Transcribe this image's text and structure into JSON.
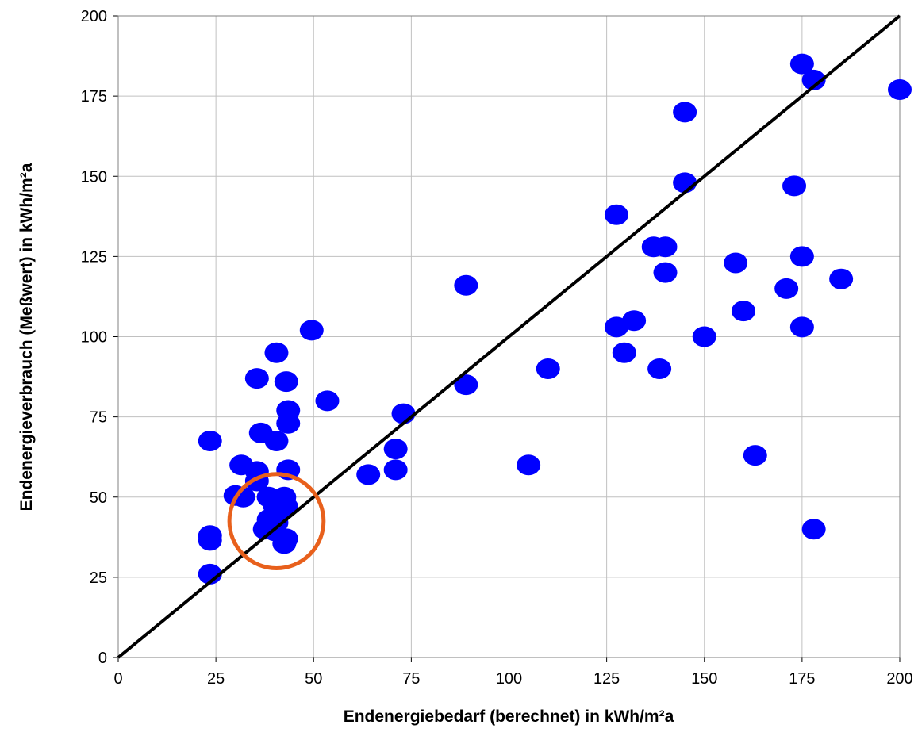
{
  "chart_data": {
    "type": "scatter",
    "title": "",
    "xlabel": "Endenergiebedarf (berechnet) in kWh/m²a",
    "ylabel": "Endenergieverbrauch (Meßwert) in kWh/m²a",
    "xlim": [
      0,
      200
    ],
    "ylim": [
      0,
      200
    ],
    "xticks": [
      "0",
      "25",
      "50",
      "75",
      "100",
      "125",
      "150",
      "175",
      "200"
    ],
    "yticks": [
      "0",
      "25",
      "50",
      "75",
      "100",
      "125",
      "150",
      "175",
      "200"
    ],
    "grid": true,
    "legend": "none",
    "colors": {
      "points": "#0000ff",
      "reference_line": "#000000",
      "highlight": "#e8601c",
      "grid": "#c0c0c0"
    },
    "reference_line": {
      "from": [
        0,
        0
      ],
      "to": [
        200,
        200
      ]
    },
    "highlight_circle": {
      "x": 40.5,
      "y": 42.5,
      "radius_x": 8.5,
      "radius_y": 19
    },
    "points": [
      [
        23.5,
        67.5
      ],
      [
        23.5,
        38
      ],
      [
        23.5,
        36.5
      ],
      [
        23.5,
        26
      ],
      [
        31.5,
        60
      ],
      [
        30,
        50.5
      ],
      [
        32,
        50
      ],
      [
        35.5,
        58
      ],
      [
        35.5,
        55
      ],
      [
        35.5,
        87
      ],
      [
        36.5,
        70
      ],
      [
        40.5,
        95
      ],
      [
        40.5,
        67.5
      ],
      [
        43,
        86
      ],
      [
        43.5,
        77
      ],
      [
        43.5,
        73
      ],
      [
        43.5,
        58.5
      ],
      [
        49.5,
        102
      ],
      [
        53.5,
        80
      ],
      [
        38.5,
        50
      ],
      [
        40,
        47.5
      ],
      [
        41,
        45
      ],
      [
        42.5,
        50
      ],
      [
        43,
        47
      ],
      [
        38.5,
        43
      ],
      [
        40.5,
        42
      ],
      [
        37.5,
        40
      ],
      [
        40,
        39.5
      ],
      [
        43,
        37
      ],
      [
        42.5,
        35.5
      ],
      [
        64,
        57
      ],
      [
        71,
        65
      ],
      [
        71,
        58.5
      ],
      [
        73,
        76
      ],
      [
        89,
        116
      ],
      [
        89,
        85
      ],
      [
        105,
        60
      ],
      [
        110,
        90
      ],
      [
        127.5,
        138
      ],
      [
        127.5,
        103
      ],
      [
        129.5,
        95
      ],
      [
        132,
        105
      ],
      [
        137,
        128
      ],
      [
        140,
        128
      ],
      [
        140,
        120
      ],
      [
        138.5,
        90
      ],
      [
        145,
        170
      ],
      [
        145,
        148
      ],
      [
        150,
        100
      ],
      [
        158,
        123
      ],
      [
        160,
        108
      ],
      [
        163,
        63
      ],
      [
        171,
        115
      ],
      [
        173,
        147
      ],
      [
        175,
        185
      ],
      [
        175,
        125
      ],
      [
        175,
        103
      ],
      [
        178,
        180
      ],
      [
        178,
        40
      ],
      [
        185,
        118
      ],
      [
        200,
        177
      ]
    ]
  }
}
